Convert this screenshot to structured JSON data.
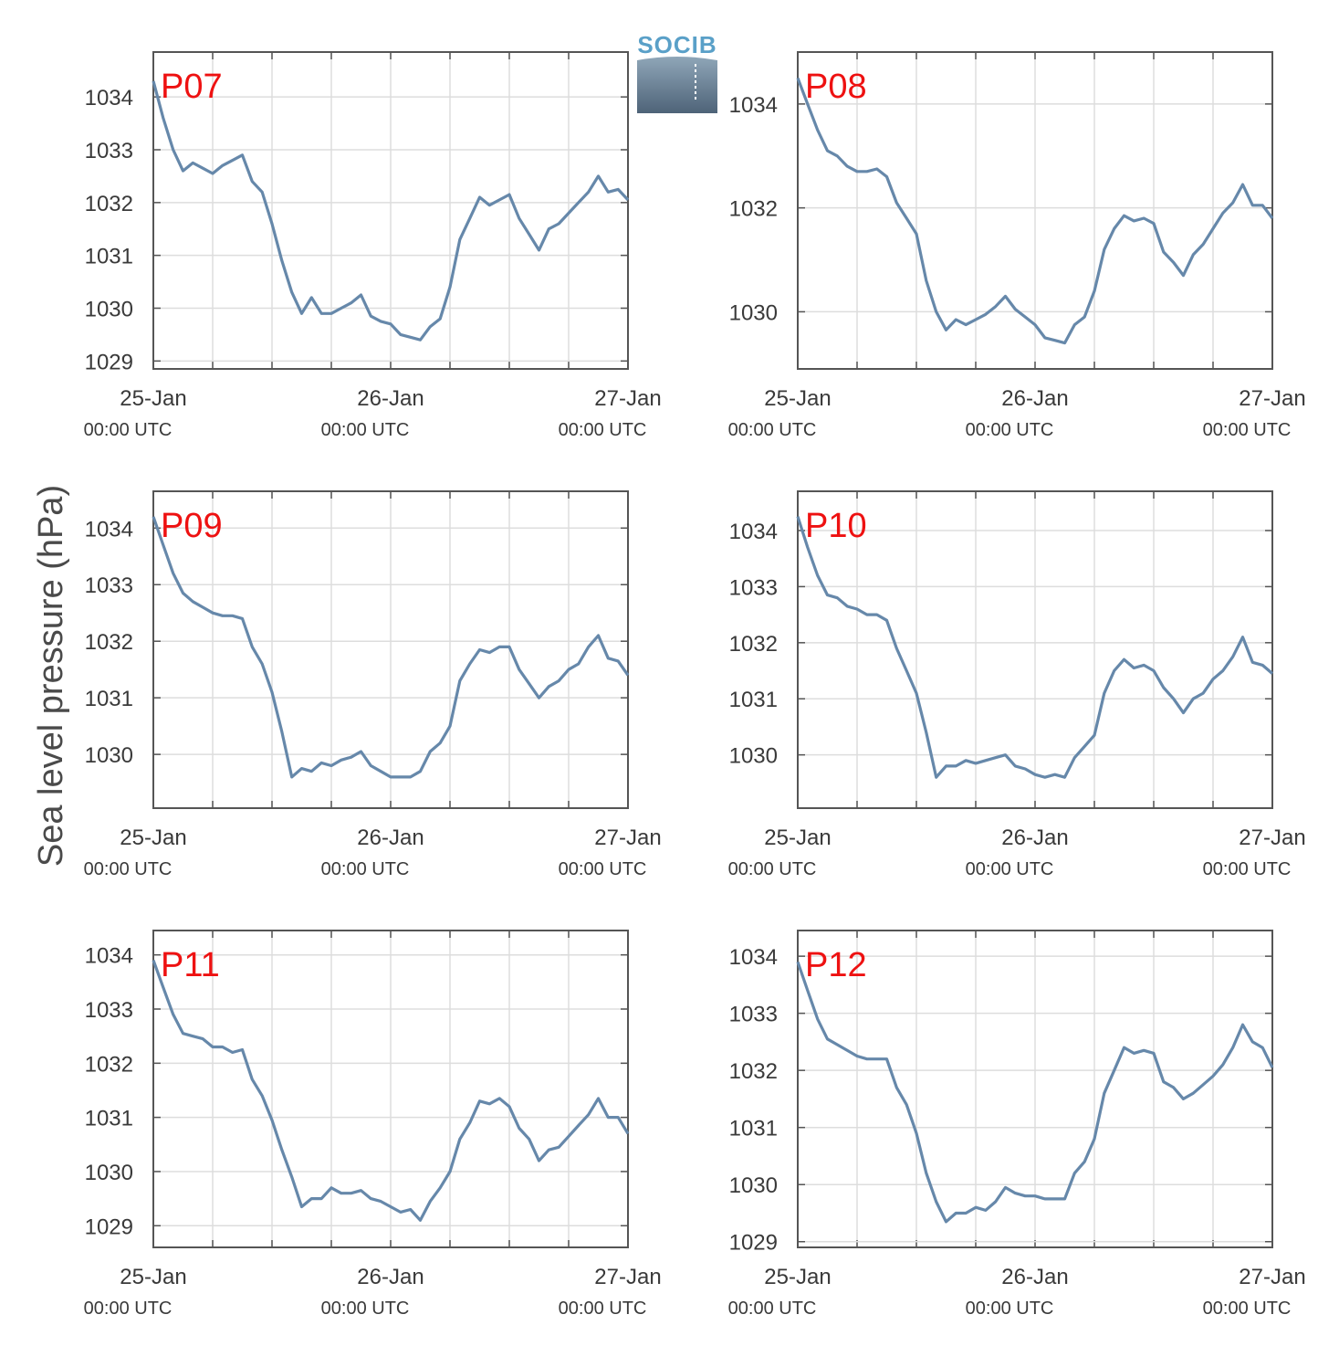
{
  "figure": {
    "ylabel": "Sea level pressure (hPa)",
    "logo_text": "SOCIB",
    "colors": {
      "line": "#6688aa",
      "grid": "#dddddd",
      "label": "#ee1111",
      "axes": "#555555"
    }
  },
  "chart_data": [
    {
      "type": "line",
      "label": "P07",
      "xlim": [
        0,
        48
      ],
      "ylim": [
        1028.85,
        1034.85
      ],
      "yticks": [
        1029,
        1030,
        1031,
        1032,
        1033,
        1034
      ],
      "xticks": [
        {
          "x": 0,
          "top": "25-Jan",
          "bottom": "00:00 UTC"
        },
        {
          "x": 24,
          "top": "26-Jan",
          "bottom": "00:00 UTC"
        },
        {
          "x": 48,
          "top": "27-Jan",
          "bottom": "00:00 UTC"
        }
      ],
      "x": [
        0,
        1,
        2,
        3,
        4,
        5,
        6,
        7,
        8,
        9,
        10,
        11,
        12,
        13,
        14,
        15,
        16,
        17,
        18,
        19,
        20,
        21,
        22,
        23,
        24,
        25,
        26,
        27,
        28,
        29,
        30,
        31,
        32,
        33,
        34,
        35,
        36,
        37,
        38,
        39,
        40,
        41,
        42,
        43,
        44,
        45,
        46,
        47,
        48
      ],
      "y": [
        1034.3,
        1033.6,
        1033.0,
        1032.6,
        1032.75,
        1032.65,
        1032.55,
        1032.7,
        1032.8,
        1032.9,
        1032.4,
        1032.2,
        1031.6,
        1030.9,
        1030.3,
        1029.9,
        1030.2,
        1029.9,
        1029.9,
        1030.0,
        1030.1,
        1030.25,
        1029.85,
        1029.75,
        1029.7,
        1029.5,
        1029.45,
        1029.4,
        1029.65,
        1029.8,
        1030.4,
        1031.3,
        1031.7,
        1032.1,
        1031.95,
        1032.05,
        1032.15,
        1031.7,
        1031.4,
        1031.1,
        1031.5,
        1031.6,
        1031.8,
        1032.0,
        1032.2,
        1032.5,
        1032.2,
        1032.25,
        1032.05
      ]
    },
    {
      "type": "line",
      "label": "P08",
      "xlim": [
        0,
        48
      ],
      "ylim": [
        1028.9,
        1035.0
      ],
      "yticks": [
        1030,
        1032,
        1034
      ],
      "xticks": [
        {
          "x": 0,
          "top": "25-Jan",
          "bottom": "00:00 UTC"
        },
        {
          "x": 24,
          "top": "26-Jan",
          "bottom": "00:00 UTC"
        },
        {
          "x": 48,
          "top": "27-Jan",
          "bottom": "00:00 UTC"
        }
      ],
      "x": [
        0,
        1,
        2,
        3,
        4,
        5,
        6,
        7,
        8,
        9,
        10,
        11,
        12,
        13,
        14,
        15,
        16,
        17,
        18,
        19,
        20,
        21,
        22,
        23,
        24,
        25,
        26,
        27,
        28,
        29,
        30,
        31,
        32,
        33,
        34,
        35,
        36,
        37,
        38,
        39,
        40,
        41,
        42,
        43,
        44,
        45,
        46,
        47,
        48
      ],
      "y": [
        1034.5,
        1034.0,
        1033.5,
        1033.1,
        1033.0,
        1032.8,
        1032.7,
        1032.7,
        1032.75,
        1032.6,
        1032.1,
        1031.8,
        1031.5,
        1030.6,
        1030.0,
        1029.65,
        1029.85,
        1029.75,
        1029.85,
        1029.95,
        1030.1,
        1030.3,
        1030.05,
        1029.9,
        1029.75,
        1029.5,
        1029.45,
        1029.4,
        1029.75,
        1029.9,
        1030.4,
        1031.2,
        1031.6,
        1031.85,
        1031.75,
        1031.8,
        1031.7,
        1031.15,
        1030.95,
        1030.7,
        1031.1,
        1031.3,
        1031.6,
        1031.9,
        1032.1,
        1032.45,
        1032.05,
        1032.05,
        1031.8
      ]
    },
    {
      "type": "line",
      "label": "P09",
      "xlim": [
        0,
        48
      ],
      "ylim": [
        1029.05,
        1034.65
      ],
      "yticks": [
        1030,
        1031,
        1032,
        1033,
        1034
      ],
      "xticks": [
        {
          "x": 0,
          "top": "25-Jan",
          "bottom": "00:00 UTC"
        },
        {
          "x": 24,
          "top": "26-Jan",
          "bottom": "00:00 UTC"
        },
        {
          "x": 48,
          "top": "27-Jan",
          "bottom": "00:00 UTC"
        }
      ],
      "x": [
        0,
        1,
        2,
        3,
        4,
        5,
        6,
        7,
        8,
        9,
        10,
        11,
        12,
        13,
        14,
        15,
        16,
        17,
        18,
        19,
        20,
        21,
        22,
        23,
        24,
        25,
        26,
        27,
        28,
        29,
        30,
        31,
        32,
        33,
        34,
        35,
        36,
        37,
        38,
        39,
        40,
        41,
        42,
        43,
        44,
        45,
        46,
        47,
        48
      ],
      "y": [
        1034.2,
        1033.7,
        1033.2,
        1032.85,
        1032.7,
        1032.6,
        1032.5,
        1032.45,
        1032.45,
        1032.4,
        1031.9,
        1031.6,
        1031.1,
        1030.4,
        1029.6,
        1029.75,
        1029.7,
        1029.85,
        1029.8,
        1029.9,
        1029.95,
        1030.05,
        1029.8,
        1029.7,
        1029.6,
        1029.6,
        1029.6,
        1029.7,
        1030.05,
        1030.2,
        1030.5,
        1031.3,
        1031.6,
        1031.85,
        1031.8,
        1031.9,
        1031.9,
        1031.5,
        1031.25,
        1031.0,
        1031.2,
        1031.3,
        1031.5,
        1031.6,
        1031.9,
        1032.1,
        1031.7,
        1031.65,
        1031.4
      ]
    },
    {
      "type": "line",
      "label": "P10",
      "xlim": [
        0,
        48
      ],
      "ylim": [
        1029.05,
        1034.7
      ],
      "yticks": [
        1030,
        1031,
        1032,
        1033,
        1034
      ],
      "xticks": [
        {
          "x": 0,
          "top": "25-Jan",
          "bottom": "00:00 UTC"
        },
        {
          "x": 24,
          "top": "26-Jan",
          "bottom": "00:00 UTC"
        },
        {
          "x": 48,
          "top": "27-Jan",
          "bottom": "00:00 UTC"
        }
      ],
      "x": [
        0,
        1,
        2,
        3,
        4,
        5,
        6,
        7,
        8,
        9,
        10,
        11,
        12,
        13,
        14,
        15,
        16,
        17,
        18,
        19,
        20,
        21,
        22,
        23,
        24,
        25,
        26,
        27,
        28,
        29,
        30,
        31,
        32,
        33,
        34,
        35,
        36,
        37,
        38,
        39,
        40,
        41,
        42,
        43,
        44,
        45,
        46,
        47,
        48
      ],
      "y": [
        1034.25,
        1033.7,
        1033.2,
        1032.85,
        1032.8,
        1032.65,
        1032.6,
        1032.5,
        1032.5,
        1032.4,
        1031.9,
        1031.5,
        1031.1,
        1030.4,
        1029.6,
        1029.8,
        1029.8,
        1029.9,
        1029.85,
        1029.9,
        1029.95,
        1030.0,
        1029.8,
        1029.75,
        1029.65,
        1029.6,
        1029.65,
        1029.6,
        1029.95,
        1030.15,
        1030.35,
        1031.1,
        1031.5,
        1031.7,
        1031.55,
        1031.6,
        1031.5,
        1031.2,
        1031.0,
        1030.75,
        1031.0,
        1031.1,
        1031.35,
        1031.5,
        1031.75,
        1032.1,
        1031.65,
        1031.6,
        1031.45
      ]
    },
    {
      "type": "line",
      "label": "P11",
      "xlim": [
        0,
        48
      ],
      "ylim": [
        1028.6,
        1034.45
      ],
      "yticks": [
        1029,
        1030,
        1031,
        1032,
        1033,
        1034
      ],
      "xticks": [
        {
          "x": 0,
          "top": "25-Jan",
          "bottom": "00:00 UTC"
        },
        {
          "x": 24,
          "top": "26-Jan",
          "bottom": "00:00 UTC"
        },
        {
          "x": 48,
          "top": "27-Jan",
          "bottom": "00:00 UTC"
        }
      ],
      "x": [
        0,
        1,
        2,
        3,
        4,
        5,
        6,
        7,
        8,
        9,
        10,
        11,
        12,
        13,
        14,
        15,
        16,
        17,
        18,
        19,
        20,
        21,
        22,
        23,
        24,
        25,
        26,
        27,
        28,
        29,
        30,
        31,
        32,
        33,
        34,
        35,
        36,
        37,
        38,
        39,
        40,
        41,
        42,
        43,
        44,
        45,
        46,
        47,
        48
      ],
      "y": [
        1033.9,
        1033.4,
        1032.9,
        1032.55,
        1032.5,
        1032.45,
        1032.3,
        1032.3,
        1032.2,
        1032.25,
        1031.7,
        1031.4,
        1030.95,
        1030.4,
        1029.9,
        1029.35,
        1029.5,
        1029.5,
        1029.7,
        1029.6,
        1029.6,
        1029.65,
        1029.5,
        1029.45,
        1029.35,
        1029.25,
        1029.3,
        1029.1,
        1029.45,
        1029.7,
        1030.0,
        1030.6,
        1030.9,
        1031.3,
        1031.25,
        1031.35,
        1031.2,
        1030.8,
        1030.6,
        1030.2,
        1030.4,
        1030.45,
        1030.65,
        1030.85,
        1031.05,
        1031.35,
        1031.0,
        1031.0,
        1030.7
      ]
    },
    {
      "type": "line",
      "label": "P12",
      "xlim": [
        0,
        48
      ],
      "ylim": [
        1028.9,
        1034.45
      ],
      "yticks": [
        1029,
        1030,
        1031,
        1032,
        1033,
        1034
      ],
      "xticks": [
        {
          "x": 0,
          "top": "25-Jan",
          "bottom": "00:00 UTC"
        },
        {
          "x": 24,
          "top": "26-Jan",
          "bottom": "00:00 UTC"
        },
        {
          "x": 48,
          "top": "27-Jan",
          "bottom": "00:00 UTC"
        }
      ],
      "x": [
        0,
        1,
        2,
        3,
        4,
        5,
        6,
        7,
        8,
        9,
        10,
        11,
        12,
        13,
        14,
        15,
        16,
        17,
        18,
        19,
        20,
        21,
        22,
        23,
        24,
        25,
        26,
        27,
        28,
        29,
        30,
        31,
        32,
        33,
        34,
        35,
        36,
        37,
        38,
        39,
        40,
        41,
        42,
        43,
        44,
        45,
        46,
        47,
        48
      ],
      "y": [
        1033.9,
        1033.4,
        1032.9,
        1032.55,
        1032.45,
        1032.35,
        1032.25,
        1032.2,
        1032.2,
        1032.2,
        1031.7,
        1031.4,
        1030.9,
        1030.2,
        1029.7,
        1029.35,
        1029.5,
        1029.5,
        1029.6,
        1029.55,
        1029.7,
        1029.95,
        1029.85,
        1029.8,
        1029.8,
        1029.75,
        1029.75,
        1029.75,
        1030.2,
        1030.4,
        1030.8,
        1031.6,
        1032.0,
        1032.4,
        1032.3,
        1032.35,
        1032.3,
        1031.8,
        1031.7,
        1031.5,
        1031.6,
        1031.75,
        1031.9,
        1032.1,
        1032.4,
        1032.8,
        1032.5,
        1032.4,
        1032.05
      ]
    }
  ]
}
